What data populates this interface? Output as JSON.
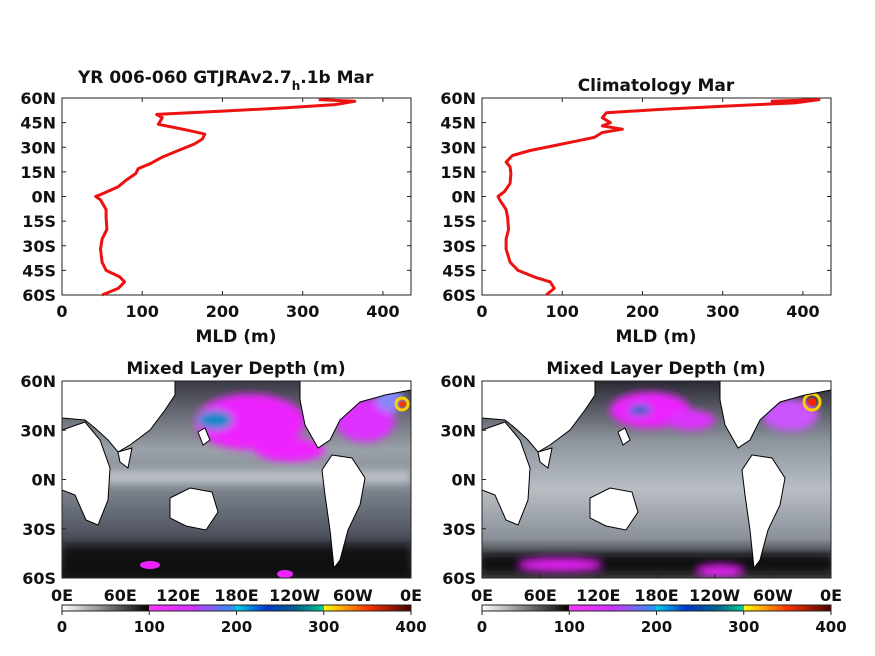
{
  "panels": {
    "left_profile_title": "YR 006-060 GTJRAv2.7",
    "left_profile_title_sub": "h",
    "left_profile_title_rest": ".1b Mar",
    "right_profile_title": "Climatology Mar",
    "left_map_title": "Mixed Layer Depth (m)",
    "right_map_title": "Mixed Layer Depth (m)"
  },
  "colors": {
    "line": "#ee1111",
    "land": "#ffffff"
  },
  "chart_data": [
    {
      "type": "line",
      "title": "YR 006-060 GTJRAv2.7h.1b Mar",
      "xlabel": "MLD (m)",
      "ylabel": "",
      "xlim": [
        0,
        435
      ],
      "ylim": [
        -60,
        60
      ],
      "xticks": [
        0,
        100,
        200,
        300,
        400
      ],
      "yticks": [
        "60N",
        "45N",
        "30N",
        "15N",
        "0N",
        "15S",
        "30S",
        "45S",
        "60S"
      ],
      "series": [
        {
          "x": [
            50,
            70,
            78,
            72,
            55,
            50,
            48,
            50,
            56,
            55,
            55,
            48,
            42,
            52,
            70,
            80,
            92,
            95,
            110,
            125,
            145,
            165,
            175,
            178,
            160,
            140,
            120,
            125,
            118,
            200,
            280,
            340,
            365,
            320
          ],
          "y": [
            -60,
            -56,
            -52,
            -49,
            -45,
            -40,
            -32,
            -26,
            -20,
            -13,
            -8,
            -2,
            0,
            2,
            6,
            10,
            14,
            17,
            20,
            24,
            28,
            32,
            35,
            38,
            40,
            42,
            44,
            48,
            50,
            52,
            54,
            56,
            58,
            59
          ]
        }
      ]
    },
    {
      "type": "line",
      "title": "Climatology Mar",
      "xlabel": "MLD (m)",
      "ylabel": "",
      "xlim": [
        0,
        435
      ],
      "ylim": [
        -60,
        60
      ],
      "xticks": [
        0,
        100,
        200,
        300,
        400
      ],
      "yticks": [
        "60N",
        "45N",
        "30N",
        "15N",
        "0N",
        "15S",
        "30S",
        "45S",
        "60S"
      ],
      "series": [
        {
          "x": [
            80,
            90,
            85,
            65,
            45,
            35,
            30,
            30,
            33,
            32,
            30,
            22,
            20,
            28,
            35,
            36,
            35,
            30,
            38,
            60,
            90,
            120,
            140,
            150,
            175,
            150,
            160,
            150,
            155,
            220,
            300,
            390,
            420,
            360
          ],
          "y": [
            -60,
            -56,
            -52,
            -49,
            -45,
            -40,
            -32,
            -26,
            -20,
            -13,
            -8,
            -2,
            0,
            3,
            8,
            14,
            18,
            21,
            25,
            28,
            31,
            34,
            36,
            39,
            41,
            43,
            45,
            48,
            51,
            53,
            55,
            57,
            59,
            58
          ]
        }
      ]
    },
    {
      "type": "heatmap",
      "title": "Mixed Layer Depth (m)",
      "xticks": [
        "0E",
        "60E",
        "120E",
        "180E",
        "120W",
        "60W",
        "0E"
      ],
      "yticks": [
        "60N",
        "30N",
        "0N",
        "30S",
        "60S"
      ],
      "colorbar": {
        "ticks": [
          "0",
          "100",
          "200",
          "300",
          "400"
        ],
        "range": [
          0,
          400
        ]
      }
    },
    {
      "type": "heatmap",
      "title": "Mixed Layer Depth (m)",
      "xticks": [
        "0E",
        "60E",
        "120E",
        "180E",
        "120W",
        "60W",
        "0E"
      ],
      "yticks": [
        "60N",
        "30N",
        "0N",
        "30S",
        "60S"
      ],
      "colorbar": {
        "ticks": [
          "0",
          "100",
          "200",
          "300",
          "400"
        ],
        "range": [
          0,
          400
        ]
      }
    }
  ]
}
